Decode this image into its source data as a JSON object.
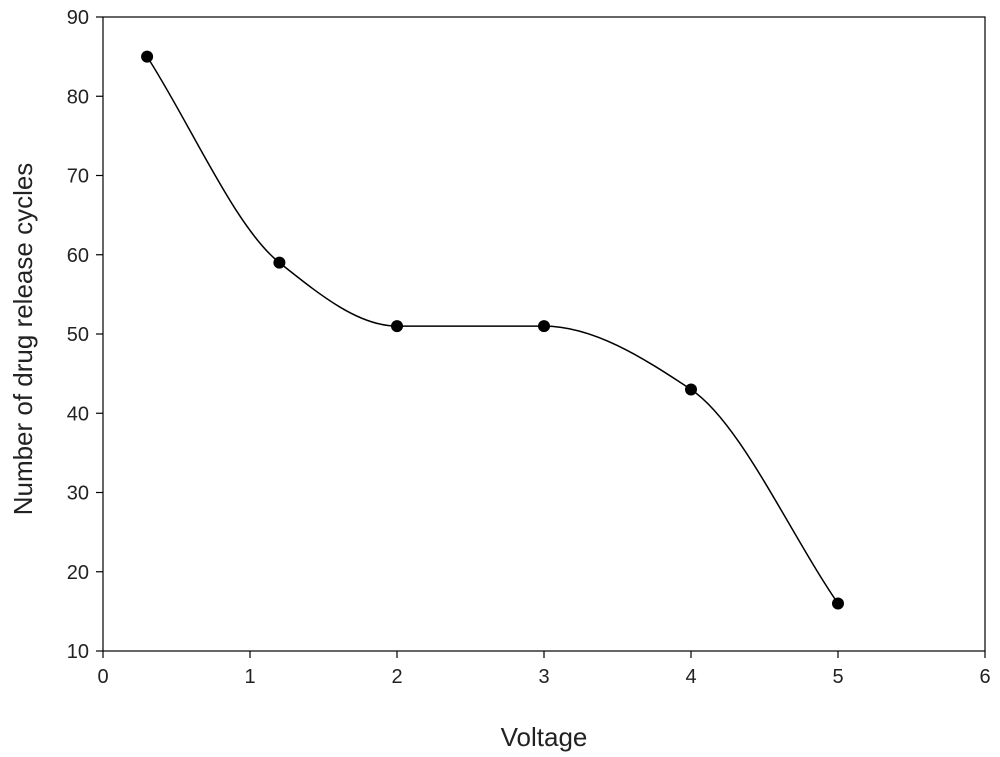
{
  "chart_data": {
    "type": "line",
    "title": "",
    "xlabel": "Voltage",
    "ylabel": "Number of drug release cycles",
    "xlim": [
      0,
      6
    ],
    "ylim": [
      10,
      90
    ],
    "xticks": [
      0,
      1,
      2,
      3,
      4,
      5,
      6
    ],
    "yticks": [
      10,
      20,
      30,
      40,
      50,
      60,
      70,
      80,
      90
    ],
    "grid": false,
    "legend": "none",
    "line_style": "smooth curve with filled circle markers",
    "colors": {
      "line": "#000000",
      "marker": "#000000",
      "axis": "#000000",
      "text": "#222222"
    },
    "series": [
      {
        "x": [
          0.3,
          1.2,
          2.0,
          3.0,
          4.0,
          5.0
        ],
        "y": [
          85,
          59,
          51,
          51,
          43,
          16
        ]
      }
    ]
  }
}
